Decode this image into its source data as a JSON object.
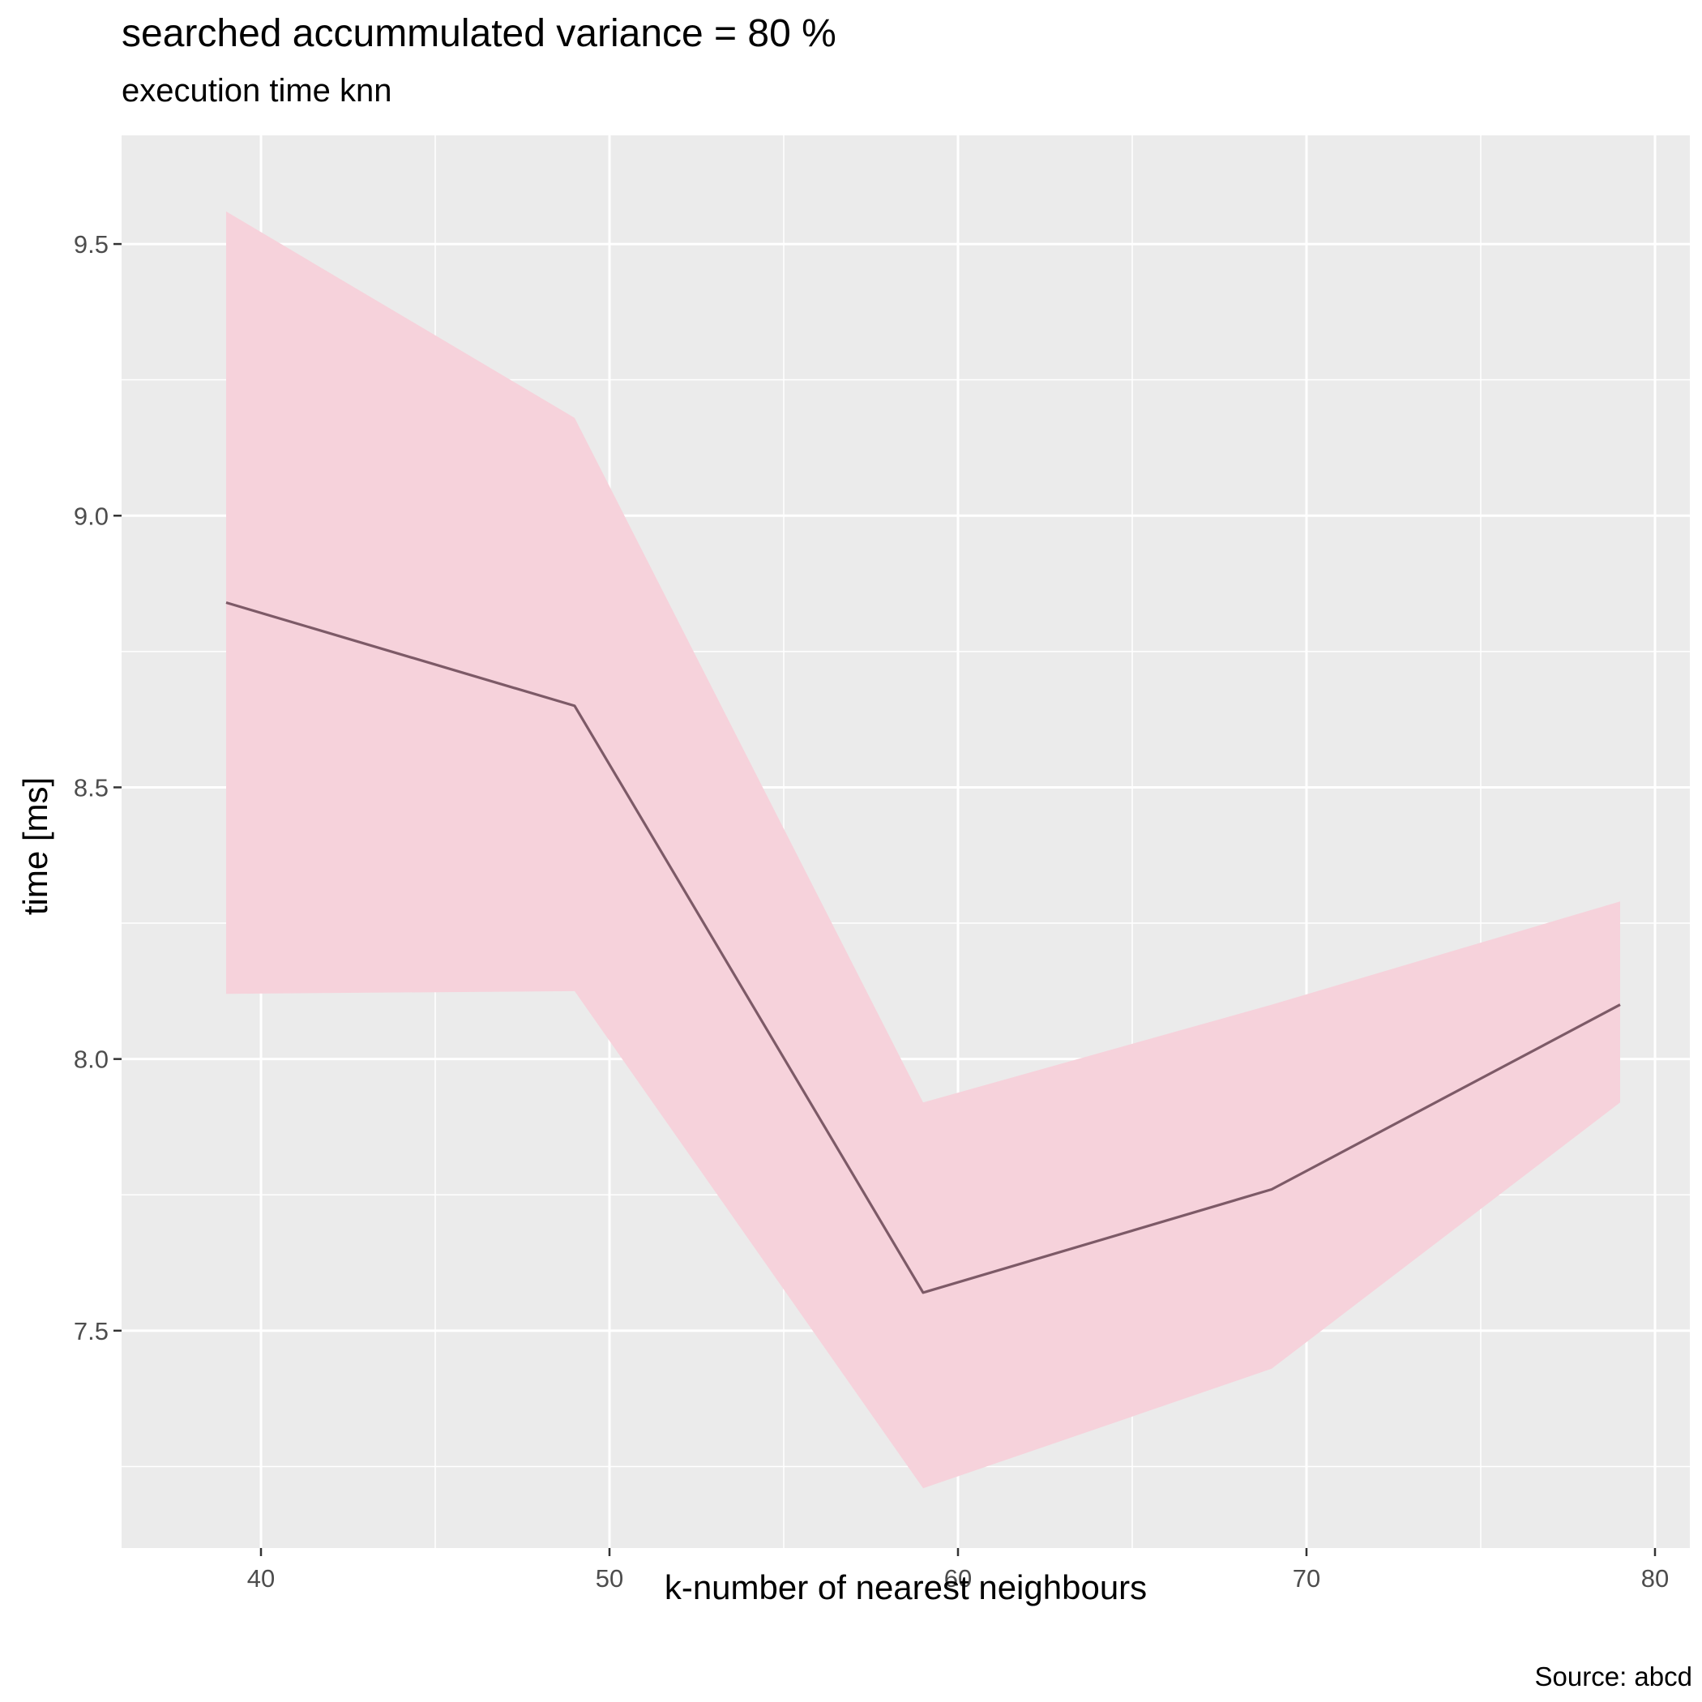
{
  "chart_data": {
    "type": "line",
    "title": "searched accummulated variance =  80 %",
    "subtitle": "execution time knn",
    "xlabel": "k-number of nearest neighbours",
    "ylabel": "time [ms]",
    "caption": "Source: abcd",
    "x": [
      39,
      49,
      59,
      69,
      79
    ],
    "series": [
      {
        "values": [
          8.84,
          8.65,
          7.57,
          7.76,
          8.1
        ],
        "ribbon_lower": [
          8.12,
          8.125,
          7.21,
          7.43,
          7.92
        ],
        "ribbon_upper": [
          9.56,
          9.18,
          7.92,
          8.1,
          8.29
        ]
      }
    ],
    "xlim": [
      36,
      81
    ],
    "ylim": [
      7.1,
      9.7
    ],
    "xticks": [
      40,
      50,
      60,
      70,
      80
    ],
    "xtick_labels": [
      "40",
      "50",
      "60",
      "70",
      "80"
    ],
    "yticks": [
      7.5,
      8.0,
      8.5,
      9.0,
      9.5
    ],
    "ytick_labels": [
      "7.5",
      "8.0",
      "8.5",
      "9.0",
      "9.5"
    ],
    "grid": true,
    "legend": "none",
    "colors": {
      "line": "#7d5a67",
      "ribbon": "#f6d2db",
      "panel": "#ebebeb",
      "grid": "#ffffff",
      "tick_text": "#4d4d4d"
    }
  }
}
